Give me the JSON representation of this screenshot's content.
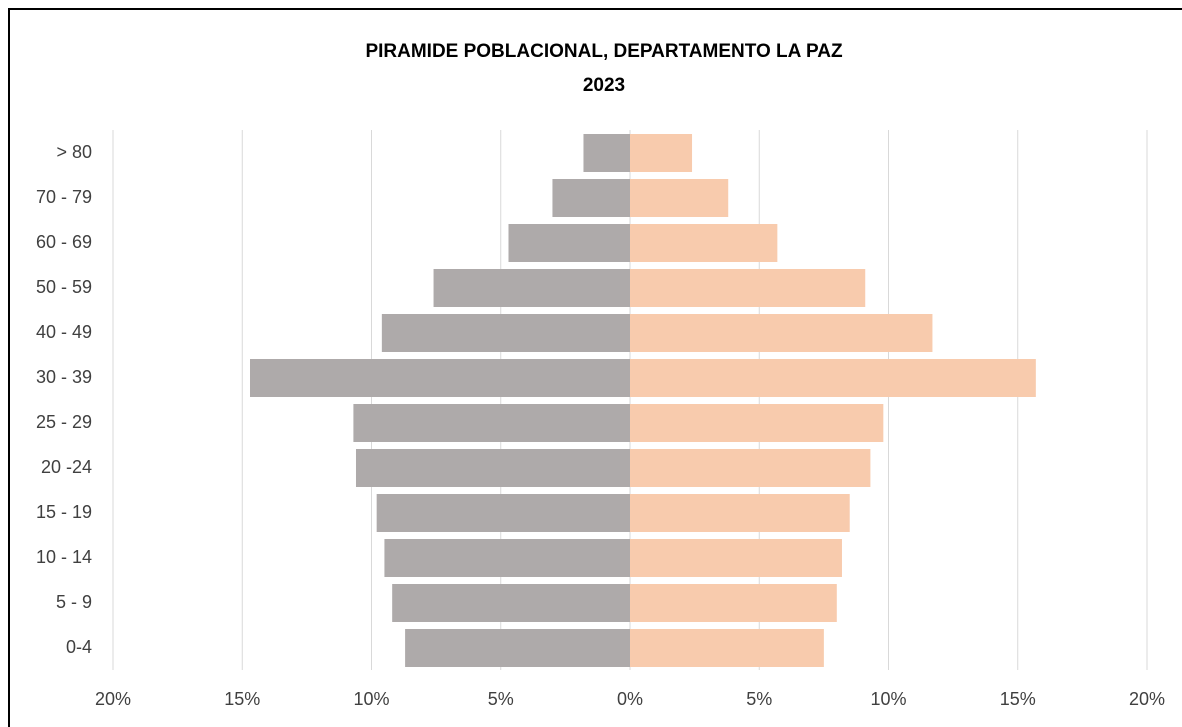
{
  "chart_data": {
    "type": "bar",
    "orientation": "horizontal",
    "title": "PIRAMIDE POBLACIONAL, DEPARTAMENTO LA PAZ",
    "subtitle": "2023",
    "categories": [
      "> 80",
      "70 - 79",
      "60 - 69",
      "50 - 59",
      "40 - 49",
      "30 - 39",
      "25 - 29",
      "20 -24",
      "15 - 19",
      "10 - 14",
      "5 - 9",
      "0-4"
    ],
    "series": [
      {
        "color": "#aeaaaa",
        "values": [
          -1.8,
          -3.0,
          -4.7,
          -7.6,
          -9.6,
          -14.7,
          -10.7,
          -10.6,
          -9.8,
          -9.5,
          -9.2,
          -8.7
        ]
      },
      {
        "color": "#f8cbad",
        "values": [
          2.4,
          3.8,
          5.7,
          9.1,
          11.7,
          15.7,
          9.8,
          9.3,
          8.5,
          8.2,
          8.0,
          7.5
        ]
      }
    ],
    "xlim": [
      -20,
      20
    ],
    "xticks": [
      {
        "value": -20,
        "label": "20%"
      },
      {
        "value": -15,
        "label": "15%"
      },
      {
        "value": -10,
        "label": "10%"
      },
      {
        "value": -5,
        "label": "5%"
      },
      {
        "value": 0,
        "label": "0%"
      },
      {
        "value": 5,
        "label": "5%"
      },
      {
        "value": 10,
        "label": "10%"
      },
      {
        "value": 15,
        "label": "15%"
      },
      {
        "value": 20,
        "label": "20%"
      }
    ],
    "grid": true
  }
}
